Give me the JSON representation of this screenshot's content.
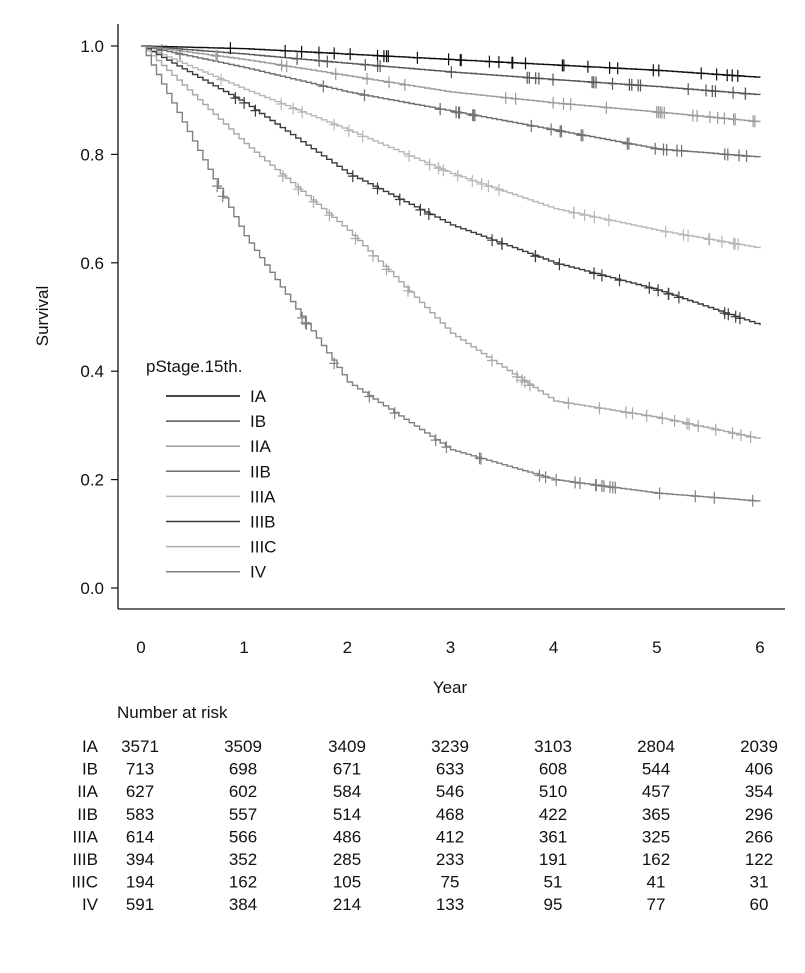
{
  "chart_data": {
    "type": "line",
    "subtype": "kaplan-meier",
    "xlabel": "Year",
    "ylabel": "Survival",
    "xlim": [
      -0.2,
      6.3
    ],
    "ylim": [
      -0.04,
      1.04
    ],
    "x_ticks": [
      "0",
      "1",
      "2",
      "3",
      "4",
      "5",
      "6"
    ],
    "y_ticks": [
      "0.0",
      "0.2",
      "0.4",
      "0.6",
      "0.8",
      "1.0"
    ],
    "legend_title": "pStage.15th.",
    "legend_position": "bottom-left",
    "series": [
      {
        "name": "IA",
        "color": "#0d0d0d",
        "x": [
          0,
          1,
          2,
          3,
          4,
          5,
          6
        ],
        "values": [
          1.0,
          0.995,
          0.985,
          0.975,
          0.965,
          0.955,
          0.942
        ]
      },
      {
        "name": "IB",
        "color": "#555555",
        "x": [
          0,
          1,
          2,
          3,
          4,
          5,
          6
        ],
        "values": [
          1.0,
          0.985,
          0.968,
          0.952,
          0.938,
          0.925,
          0.91
        ]
      },
      {
        "name": "IIA",
        "color": "#9a9a9a",
        "x": [
          0,
          1,
          2,
          3,
          4,
          5,
          6
        ],
        "values": [
          1.0,
          0.975,
          0.945,
          0.915,
          0.895,
          0.878,
          0.86
        ]
      },
      {
        "name": "IIB",
        "color": "#6e6e6e",
        "x": [
          0,
          1,
          2,
          3,
          4,
          5,
          6
        ],
        "values": [
          1.0,
          0.96,
          0.915,
          0.88,
          0.845,
          0.81,
          0.795
        ]
      },
      {
        "name": "IIIA",
        "color": "#b8b8b8",
        "x": [
          0,
          1,
          2,
          3,
          4,
          5,
          6
        ],
        "values": [
          1.0,
          0.92,
          0.845,
          0.765,
          0.7,
          0.66,
          0.627
        ]
      },
      {
        "name": "IIIB",
        "color": "#3c3c3c",
        "x": [
          0,
          1,
          2,
          3,
          4,
          5,
          6
        ],
        "values": [
          1.0,
          0.895,
          0.765,
          0.67,
          0.6,
          0.55,
          0.485
        ]
      },
      {
        "name": "IIIC",
        "color": "#a8a8a8",
        "x": [
          0,
          1,
          2,
          3,
          4,
          5,
          6
        ],
        "values": [
          1.0,
          0.82,
          0.66,
          0.47,
          0.345,
          0.315,
          0.275
        ]
      },
      {
        "name": "IV",
        "color": "#808080",
        "x": [
          0,
          1,
          2,
          3,
          4,
          5,
          6
        ],
        "values": [
          1.0,
          0.65,
          0.38,
          0.255,
          0.2,
          0.175,
          0.16
        ]
      }
    ],
    "number_at_risk": {
      "title": "Number at risk",
      "rows": [
        {
          "label": "IA",
          "values": [
            "3571",
            "3509",
            "3409",
            "3239",
            "3103",
            "2804",
            "2039"
          ]
        },
        {
          "label": "IB",
          "values": [
            "713",
            "698",
            "671",
            "633",
            "608",
            "544",
            "406"
          ]
        },
        {
          "label": "IIA",
          "values": [
            "627",
            "602",
            "584",
            "546",
            "510",
            "457",
            "354"
          ]
        },
        {
          "label": "IIB",
          "values": [
            "583",
            "557",
            "514",
            "468",
            "422",
            "365",
            "296"
          ]
        },
        {
          "label": "IIIA",
          "values": [
            "614",
            "566",
            "486",
            "412",
            "361",
            "325",
            "266"
          ]
        },
        {
          "label": "IIIB",
          "values": [
            "394",
            "352",
            "285",
            "233",
            "191",
            "162",
            "122"
          ]
        },
        {
          "label": "IIIC",
          "values": [
            "194",
            "162",
            "105",
            "75",
            "51",
            "41",
            "31"
          ]
        },
        {
          "label": "IV",
          "values": [
            "591",
            "384",
            "214",
            "133",
            "95",
            "77",
            "60"
          ]
        }
      ]
    }
  }
}
